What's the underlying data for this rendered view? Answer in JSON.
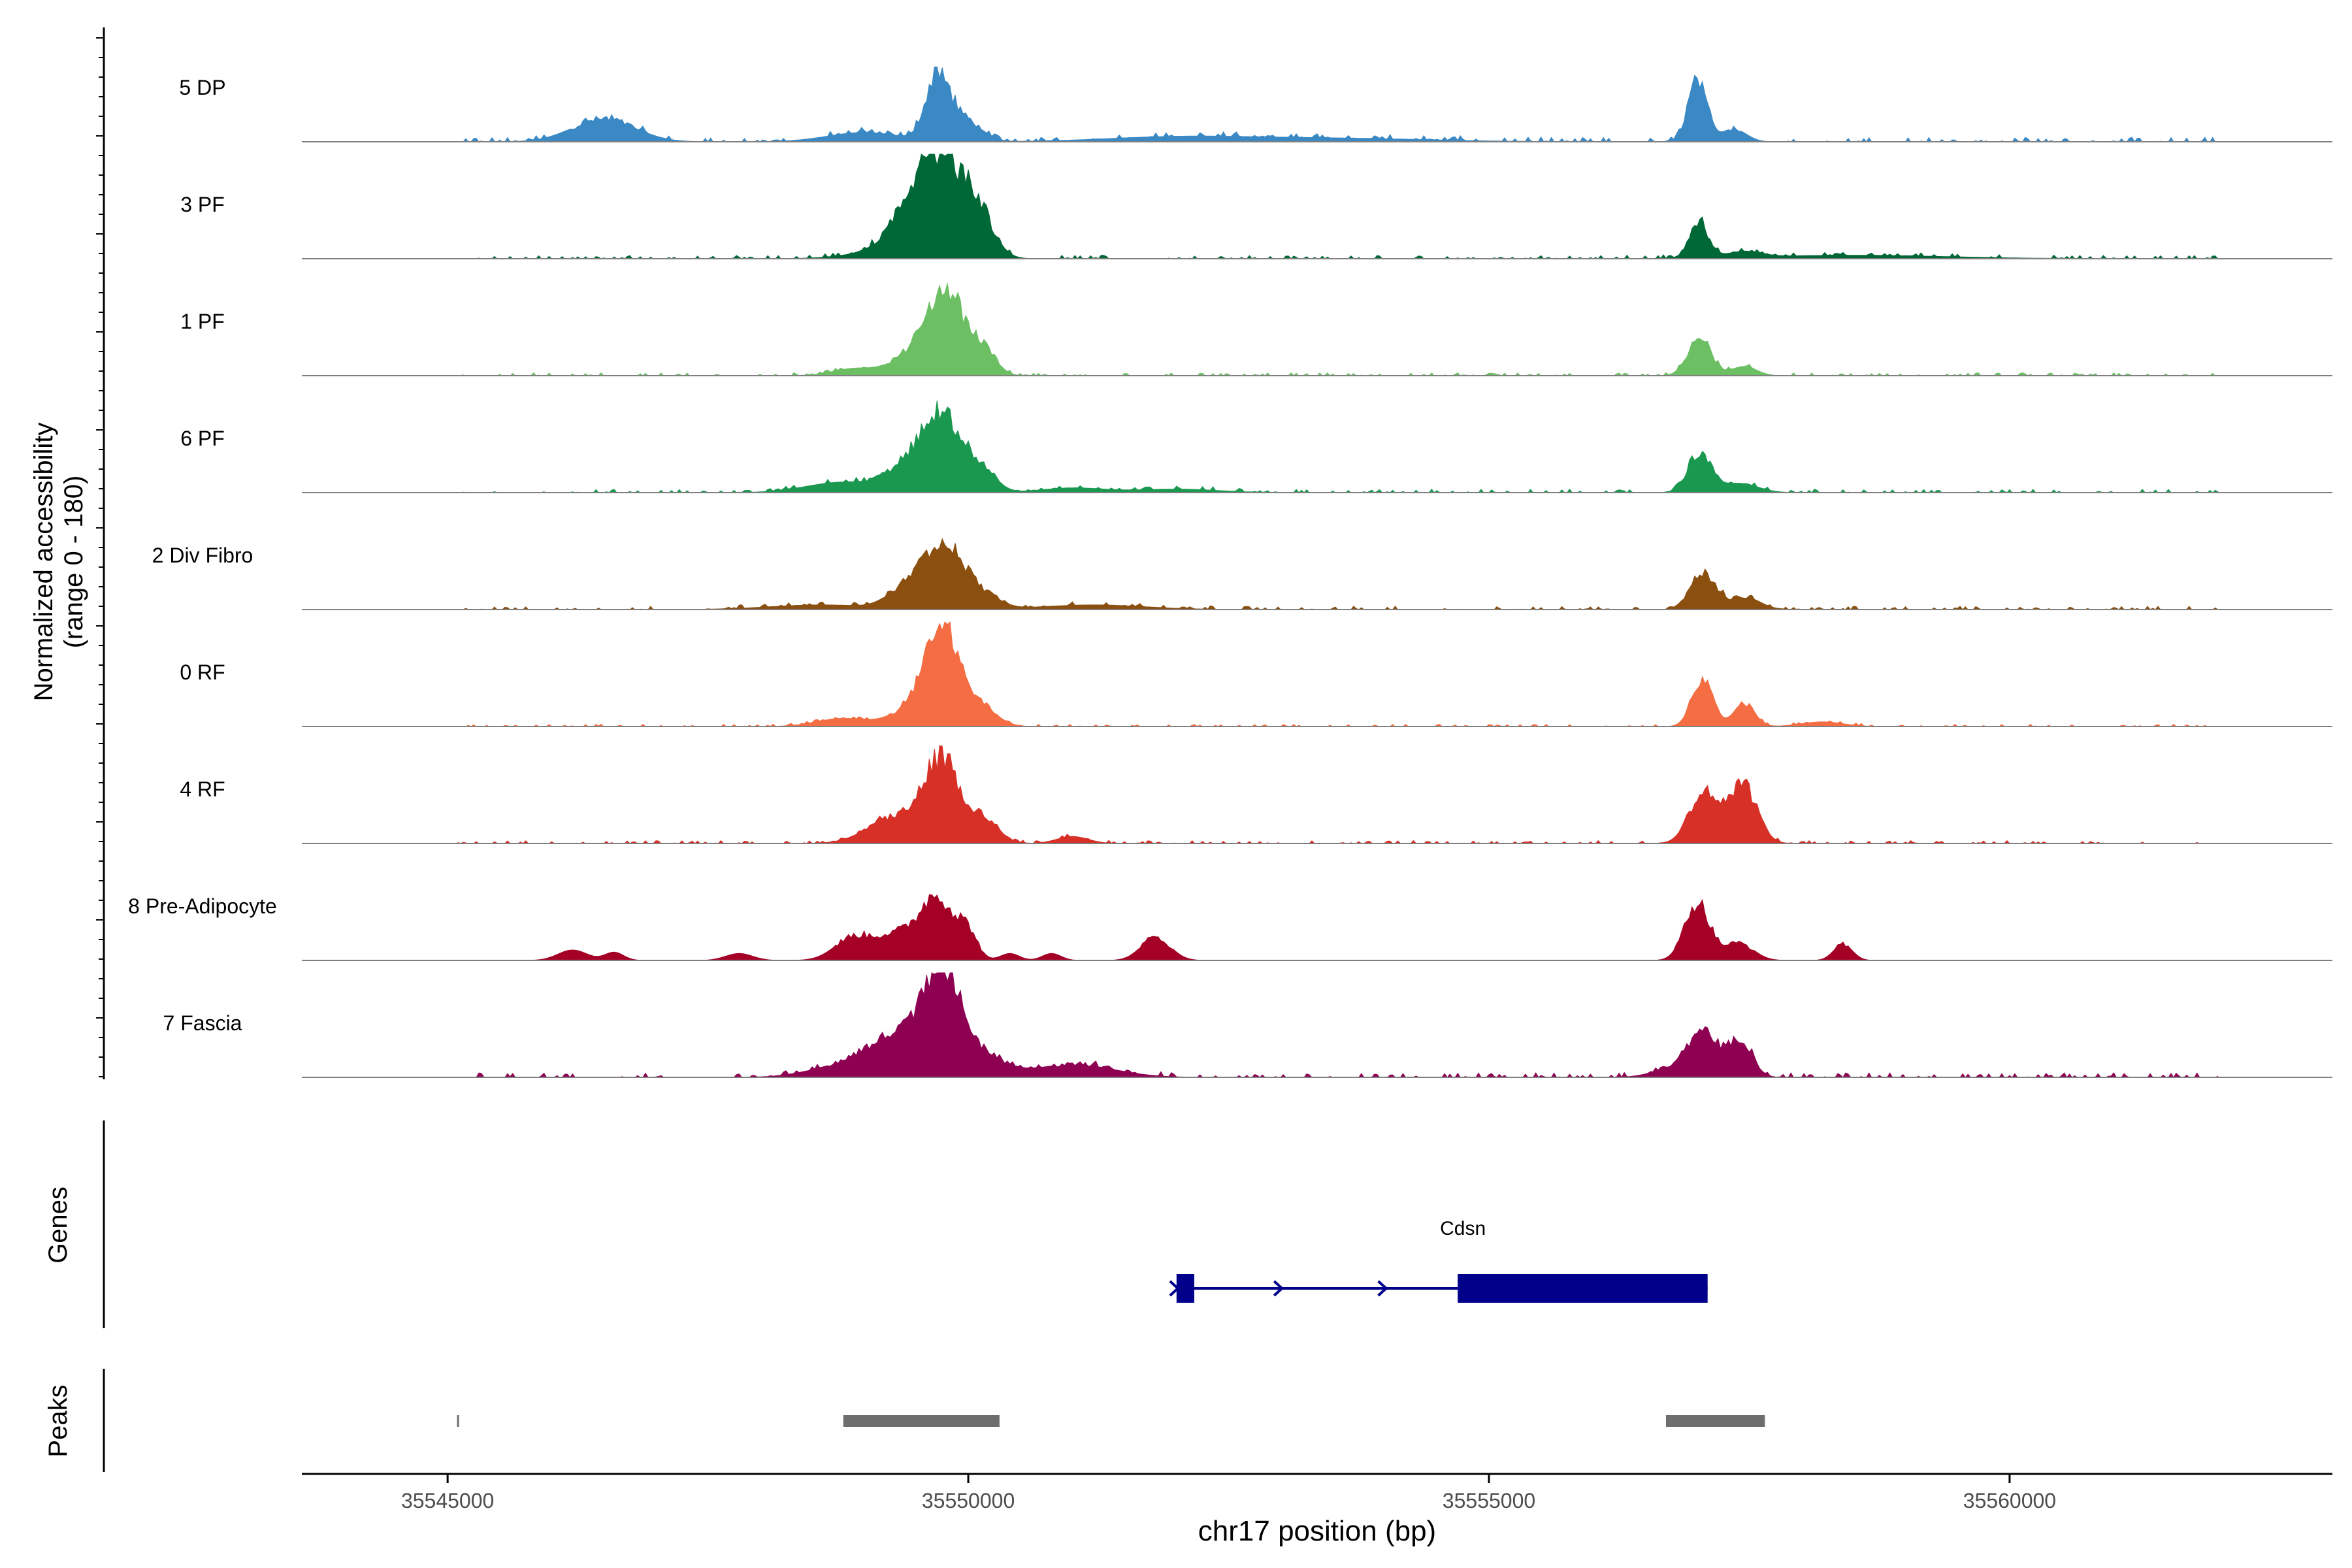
{
  "chart_data": {
    "type": "area",
    "title": "",
    "ylabel_line1": "Normalized accessibility",
    "ylabel_line2": "(range 0 - 180)",
    "xlabel": "chr17 position (bp)",
    "xlim": [
      35543600,
      35563100
    ],
    "ylim": [
      0,
      180
    ],
    "x_ticks": [
      35545000,
      35550000,
      35555000,
      35560000
    ],
    "x_tick_labels": [
      "35545000",
      "35550000",
      "35555000",
      "35560000"
    ],
    "tracks": [
      {
        "name": "5 DP",
        "color": "#3A89C5",
        "peaks": [
          [
            35546500,
            40,
            300
          ],
          [
            35549700,
            110,
            110
          ],
          [
            35549950,
            40,
            160
          ],
          [
            35549000,
            16,
            350
          ],
          [
            35557000,
            105,
            90
          ],
          [
            35557350,
            22,
            120
          ],
          [
            35552000,
            8,
            700
          ],
          [
            35553500,
            6,
            900
          ]
        ],
        "noise": 8,
        "extent": [
          35545100,
          35562000
        ]
      },
      {
        "name": "3 PF",
        "color": "#006837",
        "peaks": [
          [
            35549750,
            155,
            240
          ],
          [
            35549450,
            55,
            240
          ],
          [
            35550100,
            55,
            140
          ],
          [
            35557020,
            60,
            90
          ],
          [
            35557450,
            10,
            160
          ],
          [
            35549000,
            6,
            300
          ],
          [
            35558500,
            6,
            900
          ]
        ],
        "noise": 6,
        "extent": [
          35545100,
          35562000
        ]
      },
      {
        "name": "1 PF",
        "color": "#6DBF64",
        "peaks": [
          [
            35549800,
            135,
            170
          ],
          [
            35549500,
            40,
            220
          ],
          [
            35550150,
            40,
            120
          ],
          [
            35548900,
            12,
            200
          ],
          [
            35557020,
            65,
            110
          ],
          [
            35557450,
            16,
            120
          ]
        ],
        "noise": 5,
        "extent": [
          35545100,
          35562000
        ]
      },
      {
        "name": "6 PF",
        "color": "#1A9850",
        "peaks": [
          [
            35549750,
            130,
            200
          ],
          [
            35549400,
            35,
            200
          ],
          [
            35550150,
            30,
            130
          ],
          [
            35548800,
            18,
            350
          ],
          [
            35557020,
            68,
            110
          ],
          [
            35557400,
            16,
            180
          ],
          [
            35551000,
            8,
            300
          ],
          [
            35552000,
            6,
            400
          ]
        ],
        "noise": 6,
        "extent": [
          35545100,
          35562000
        ]
      },
      {
        "name": "2 Div Fibro",
        "color": "#8B5010",
        "peaks": [
          [
            35549750,
            120,
            200
          ],
          [
            35549350,
            25,
            160
          ],
          [
            35550150,
            20,
            160
          ],
          [
            35548600,
            8,
            500
          ],
          [
            35557050,
            62,
            120
          ],
          [
            35557450,
            22,
            150
          ],
          [
            35551200,
            8,
            500
          ]
        ],
        "noise": 6,
        "extent": [
          35545100,
          35562000
        ]
      },
      {
        "name": "0 RF",
        "color": "#F46D43",
        "peaks": [
          [
            35549750,
            168,
            160
          ],
          [
            35549450,
            28,
            200
          ],
          [
            35550100,
            35,
            160
          ],
          [
            35548800,
            14,
            250
          ],
          [
            35557050,
            80,
            100
          ],
          [
            35557450,
            40,
            100
          ],
          [
            35558200,
            8,
            200
          ]
        ],
        "noise": 4,
        "extent": [
          35545100,
          35562000
        ]
      },
      {
        "name": "4 RF",
        "color": "#D73027",
        "peaks": [
          [
            35549750,
            140,
            170
          ],
          [
            35549300,
            45,
            260
          ],
          [
            35550150,
            40,
            140
          ],
          [
            35551000,
            12,
            150
          ],
          [
            35557050,
            78,
            130
          ],
          [
            35557450,
            88,
            130
          ],
          [
            35557250,
            20,
            200
          ]
        ],
        "noise": 5,
        "extent": [
          35545100,
          35562000
        ]
      },
      {
        "name": "8 Pre-Adipocyte",
        "color": "#A50026",
        "peaks": [
          [
            35549700,
            110,
            170
          ],
          [
            35549300,
            40,
            180
          ],
          [
            35548900,
            40,
            180
          ],
          [
            35550000,
            40,
            90
          ],
          [
            35546200,
            18,
            140
          ],
          [
            35546600,
            14,
            90
          ],
          [
            35547800,
            12,
            130
          ],
          [
            35550400,
            12,
            90
          ],
          [
            35550800,
            12,
            90
          ],
          [
            35551800,
            40,
            140
          ],
          [
            35557000,
            100,
            120
          ],
          [
            35557400,
            30,
            140
          ],
          [
            35558400,
            28,
            90
          ]
        ],
        "noise": 0,
        "extent": [
          35545100,
          35562000
        ]
      },
      {
        "name": "7 Fascia",
        "color": "#8E0152",
        "peaks": [
          [
            35549750,
            168,
            180
          ],
          [
            35549300,
            70,
            300
          ],
          [
            35550150,
            35,
            200
          ],
          [
            35548700,
            14,
            300
          ],
          [
            35551000,
            22,
            400
          ],
          [
            35557050,
            75,
            130
          ],
          [
            35557400,
            62,
            120
          ],
          [
            35556800,
            18,
            200
          ]
        ],
        "noise": 8,
        "extent": [
          35545100,
          35562000
        ]
      }
    ],
    "genes": {
      "label": "Genes",
      "name": "Cdsn",
      "start": 35552000,
      "end": 35557100,
      "strand": "+",
      "exons": [
        [
          35552000,
          35552170
        ],
        [
          35554700,
          35557100
        ]
      ],
      "color": "#00008B"
    },
    "peaks_track": {
      "label": "Peaks",
      "color": "#6E6E6E",
      "regions": [
        [
          35545100,
          35545120
        ],
        [
          35548800,
          35550300
        ],
        [
          35556700,
          35557650
        ]
      ]
    }
  }
}
